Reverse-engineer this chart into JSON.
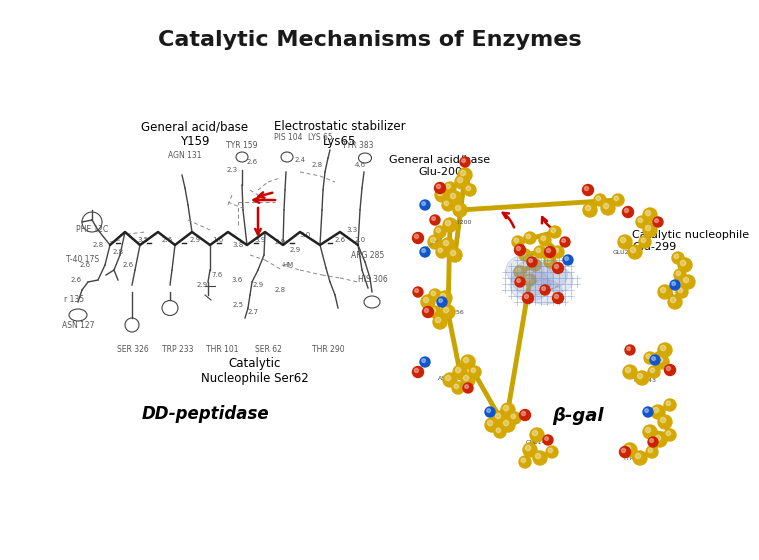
{
  "title": "Catalytic Mechanisms of Enzymes",
  "title_fontsize": 16,
  "title_color": "#1a1a1a",
  "background_color": "#ffffff",
  "left_panel": {
    "label_general_acid": "General acid/base\nY159",
    "label_electrostatic": "Electrostatic stabilizer\nLys65",
    "label_nucleophile": "Catalytic\nNucleophile Ser62",
    "label_dd": "DD-peptidase",
    "label_color": "#000000",
    "diagram_color": "#444444",
    "arrow_color": "#cc0000"
  },
  "right_panel": {
    "label_nucleophile": "Catalytic nucleophile\nGlu-299",
    "label_general_acid": "General acid/base\nGlu-200",
    "label_beta": "β-gal",
    "label_color": "#000000"
  }
}
